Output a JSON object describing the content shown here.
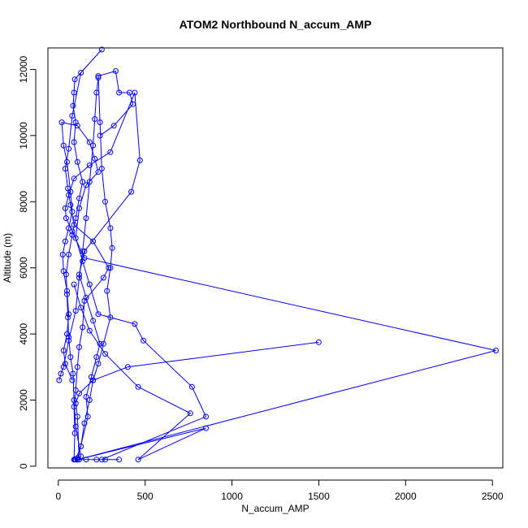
{
  "chart_data": {
    "type": "line",
    "title": "ATOM2 Northbound N_accum_AMP",
    "xlabel": "N_accum_AMP",
    "ylabel": "Altitude (m)",
    "xlim": [
      -60,
      2560
    ],
    "ylim": [
      -50,
      12650
    ],
    "x_ticks": [
      0,
      500,
      1000,
      1500,
      2000,
      2500
    ],
    "y_ticks": [
      0,
      2000,
      4000,
      6000,
      8000,
      10000,
      12000
    ],
    "x_tick_labels": [
      "0",
      "500",
      "1000",
      "1500",
      "2000",
      "2500"
    ],
    "y_tick_labels": [
      "0",
      "2000",
      "4000",
      "6000",
      "8000",
      "10000",
      "12000"
    ],
    "grid": false,
    "legend": "none",
    "marker": "open-circle",
    "color": "#0000ff",
    "series": [
      {
        "points": [
          [
            95,
            200
          ],
          [
            110,
            250
          ],
          [
            130,
            300
          ],
          [
            100,
            1200
          ],
          [
            90,
            2000
          ],
          [
            85,
            2800
          ],
          [
            70,
            3300
          ],
          [
            60,
            3900
          ],
          [
            55,
            4500
          ],
          [
            50,
            5200
          ],
          [
            45,
            5800
          ],
          [
            60,
            6400
          ],
          [
            80,
            7000
          ],
          [
            100,
            7500
          ],
          [
            120,
            8100
          ],
          [
            140,
            8600
          ],
          [
            110,
            9200
          ],
          [
            90,
            9800
          ],
          [
            100,
            10400
          ],
          [
            85,
            10900
          ],
          [
            90,
            11300
          ],
          [
            95,
            11700
          ],
          [
            250,
            12600
          ],
          [
            130,
            11900
          ],
          [
            80,
            10600
          ],
          [
            60,
            9600
          ],
          [
            40,
            9000
          ],
          [
            55,
            8400
          ],
          [
            70,
            7900
          ],
          [
            90,
            7300
          ],
          [
            200,
            6800
          ],
          [
            290,
            6000
          ],
          [
            260,
            5700
          ],
          [
            150,
            5000
          ],
          [
            140,
            4200
          ],
          [
            120,
            3600
          ],
          [
            110,
            3000
          ],
          [
            100,
            2300
          ],
          [
            90,
            1800
          ],
          [
            95,
            1000
          ],
          [
            90,
            200
          ]
        ]
      },
      {
        "points": [
          [
            1500,
            3750
          ],
          [
            400,
            3000
          ],
          [
            200,
            2600
          ],
          [
            120,
            2200
          ],
          [
            100,
            1900
          ],
          [
            110,
            1500
          ],
          [
            120,
            200
          ],
          [
            110,
            200
          ],
          [
            2520,
            3500
          ],
          [
            150,
            6300
          ],
          [
            80,
            7100
          ],
          [
            45,
            7500
          ],
          [
            40,
            7800
          ],
          [
            60,
            8200
          ],
          [
            90,
            8700
          ],
          [
            180,
            9100
          ],
          [
            300,
            9500
          ],
          [
            440,
            11300
          ],
          [
            470,
            9250
          ],
          [
            420,
            8300
          ],
          [
            150,
            6500
          ],
          [
            120,
            5800
          ],
          [
            160,
            5100
          ],
          [
            200,
            4400
          ],
          [
            240,
            3700
          ],
          [
            220,
            3300
          ],
          [
            190,
            2700
          ],
          [
            160,
            2100
          ],
          [
            170,
            1500
          ],
          [
            110,
            200
          ],
          [
            850,
            1150
          ],
          [
            460,
            200
          ],
          [
            760,
            1600
          ],
          [
            460,
            2400
          ],
          [
            270,
            3400
          ],
          [
            180,
            4100
          ],
          [
            130,
            4800
          ],
          [
            90,
            5500
          ]
        ]
      },
      {
        "points": [
          [
            80,
            2600
          ],
          [
            40,
            3100
          ],
          [
            30,
            3500
          ],
          [
            50,
            4000
          ],
          [
            60,
            4600
          ],
          [
            50,
            5300
          ],
          [
            30,
            5900
          ],
          [
            25,
            6400
          ],
          [
            40,
            6800
          ],
          [
            60,
            7200
          ],
          [
            80,
            7700
          ],
          [
            70,
            8300
          ],
          [
            50,
            9200
          ],
          [
            30,
            9700
          ],
          [
            20,
            10400
          ],
          [
            110,
            10300
          ],
          [
            180,
            9800
          ],
          [
            210,
            9300
          ],
          [
            230,
            8900
          ],
          [
            160,
            8500
          ],
          [
            120,
            7800
          ],
          [
            100,
            6900
          ],
          [
            140,
            6200
          ],
          [
            180,
            5500
          ],
          [
            230,
            4600
          ],
          [
            440,
            4300
          ],
          [
            490,
            3800
          ],
          [
            770,
            2400
          ],
          [
            850,
            1500
          ],
          [
            250,
            200
          ],
          [
            350,
            200
          ],
          [
            270,
            200
          ],
          [
            220,
            200
          ],
          [
            160,
            200
          ],
          [
            100,
            200
          ],
          [
            130,
            600
          ],
          [
            150,
            1300
          ],
          [
            180,
            2000
          ],
          [
            200,
            2600
          ],
          [
            230,
            3100
          ],
          [
            260,
            3700
          ],
          [
            300,
            4500
          ],
          [
            280,
            5300
          ],
          [
            300,
            6000
          ],
          [
            310,
            6600
          ],
          [
            300,
            7200
          ],
          [
            270,
            8000
          ],
          [
            250,
            9000
          ],
          [
            240,
            10400
          ],
          [
            230,
            11800
          ],
          [
            330,
            11950
          ],
          [
            350,
            11300
          ],
          [
            410,
            11300
          ],
          [
            430,
            10950
          ],
          [
            320,
            10300
          ],
          [
            240,
            10000
          ]
        ]
      },
      {
        "points": [
          [
            5,
            2600
          ],
          [
            15,
            2800
          ],
          [
            30,
            3000
          ],
          [
            60,
            3800
          ],
          [
            100,
            4700
          ],
          [
            120,
            5700
          ],
          [
            140,
            6500
          ],
          [
            160,
            7500
          ],
          [
            180,
            8600
          ],
          [
            200,
            9700
          ],
          [
            210,
            10500
          ],
          [
            220,
            11300
          ],
          [
            230,
            11750
          ]
        ]
      }
    ]
  }
}
